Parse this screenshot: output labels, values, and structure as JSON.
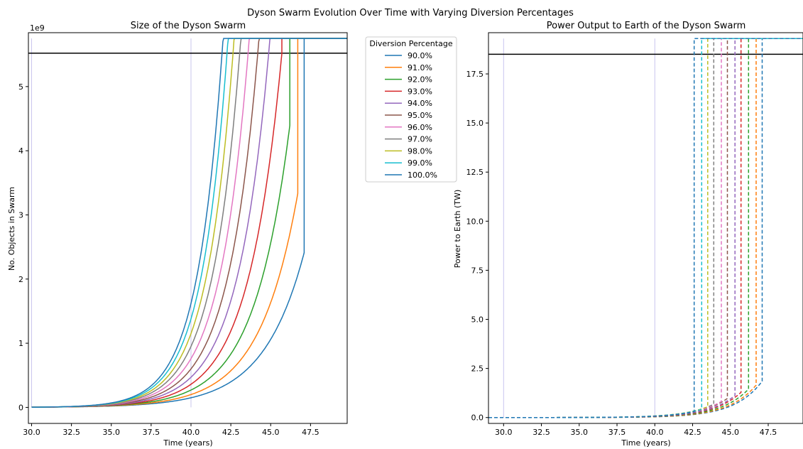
{
  "suptitle": "Dyson Swarm Evolution Over Time with Varying Diversion Percentages",
  "legend": {
    "title": "Diversion Percentage",
    "placement": "right of left panel, top",
    "entries": [
      "90.0%",
      "91.0%",
      "92.0%",
      "93.0%",
      "94.0%",
      "95.0%",
      "96.0%",
      "97.0%",
      "98.0%",
      "99.0%",
      "100.0%"
    ]
  },
  "colors": [
    "#1f77b4",
    "#ff7f0e",
    "#2ca02c",
    "#d62728",
    "#9467bd",
    "#8c564b",
    "#e377c2",
    "#7f7f7f",
    "#bcbd22",
    "#17becf",
    "#1f77b4"
  ],
  "chart_data": [
    {
      "type": "line",
      "title": "Size of the Dyson Swarm",
      "xlabel": "Time (years)",
      "ylabel": "No. Objects in Swarm",
      "y_offset_label": "1e9",
      "xlim": [
        29.8,
        49.8
      ],
      "ylim": [
        -0.25,
        5.84
      ],
      "xticks": [
        "30.0",
        "32.5",
        "35.0",
        "37.5",
        "40.0",
        "42.5",
        "45.0",
        "47.5"
      ],
      "yticks": [
        "0",
        "1",
        "2",
        "3",
        "4",
        "5"
      ],
      "grid": false,
      "hline": 5.52,
      "vlines": [
        30.0,
        40.0
      ],
      "plateau": 5.75,
      "series": [
        {
          "name": "90.0%",
          "saturation_year": 47.1,
          "value_at_30": 0.003,
          "value_at_40": 0.15
        },
        {
          "name": "91.0%",
          "saturation_year": 46.7,
          "value_at_30": 0.003,
          "value_at_40": 0.2
        },
        {
          "name": "92.0%",
          "saturation_year": 46.2,
          "value_at_30": 0.003,
          "value_at_40": 0.27
        },
        {
          "name": "93.0%",
          "saturation_year": 45.7,
          "value_at_30": 0.003,
          "value_at_40": 0.36
        },
        {
          "name": "94.0%",
          "saturation_year": 45.3,
          "value_at_30": 0.003,
          "value_at_40": 0.47
        },
        {
          "name": "95.0%",
          "saturation_year": 44.8,
          "value_at_30": 0.003,
          "value_at_40": 0.6
        },
        {
          "name": "96.0%",
          "saturation_year": 44.4,
          "value_at_30": 0.003,
          "value_at_40": 0.76
        },
        {
          "name": "97.0%",
          "saturation_year": 43.9,
          "value_at_30": 0.003,
          "value_at_40": 0.95
        },
        {
          "name": "98.0%",
          "saturation_year": 43.5,
          "value_at_30": 0.003,
          "value_at_40": 1.15
        },
        {
          "name": "99.0%",
          "saturation_year": 43.1,
          "value_at_30": 0.003,
          "value_at_40": 1.38
        },
        {
          "name": "100.0%",
          "saturation_year": 42.6,
          "value_at_30": 0.003,
          "value_at_40": 1.62
        }
      ]
    },
    {
      "type": "line",
      "title": "Power Output to Earth of the Dyson Swarm",
      "xlabel": "Time (years)",
      "ylabel": "Power to Earth (TW)",
      "line_style": "dashed",
      "xlim": [
        29.0,
        49.8
      ],
      "ylim": [
        -0.3,
        19.6
      ],
      "xticks": [
        "30.0",
        "32.5",
        "35.0",
        "37.5",
        "40.0",
        "42.5",
        "45.0",
        "47.5"
      ],
      "yticks": [
        "0.0",
        "2.5",
        "5.0",
        "7.5",
        "10.0",
        "12.5",
        "15.0",
        "17.5"
      ],
      "grid": false,
      "hline": 18.5,
      "vlines": [
        30.0,
        40.0
      ],
      "plateau": 19.3,
      "pre_jump_power": [
        1.85,
        1.65,
        1.45,
        1.28,
        1.12,
        0.97,
        0.82,
        0.68,
        0.55,
        0.42,
        0.3
      ]
    }
  ]
}
